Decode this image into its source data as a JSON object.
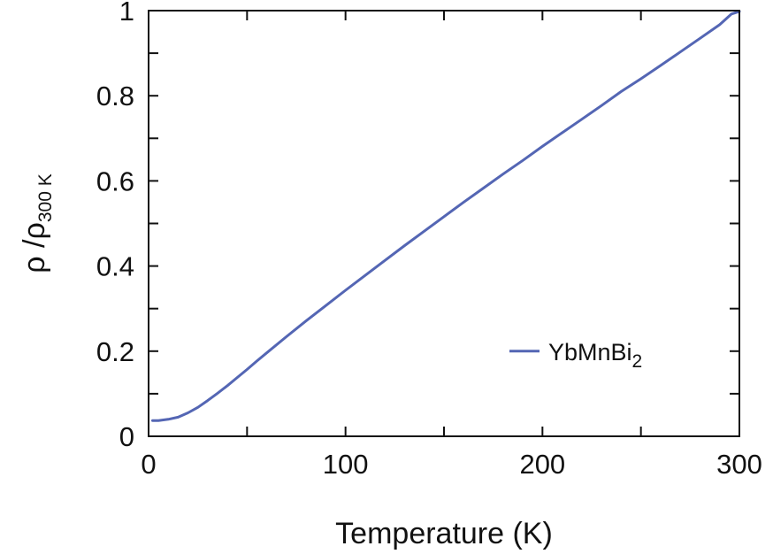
{
  "chart_data": {
    "type": "line",
    "title": "",
    "xlabel": "Temperature (K)",
    "ylabel": {
      "symbol": "ρ /ρ",
      "subscript": "300 K"
    },
    "xlim": [
      0,
      300
    ],
    "ylim": [
      0,
      1.0
    ],
    "xticks": [
      0,
      100,
      200,
      300
    ],
    "xtick_labels": [
      "0",
      "100",
      "200",
      "300"
    ],
    "yticks": [
      0,
      0.2,
      0.4,
      0.6,
      0.8,
      1.0
    ],
    "ytick_labels": [
      "0",
      "0.2",
      "0.4",
      "0.6",
      "0.8",
      "1"
    ],
    "grid": false,
    "legend_position": "lower-right",
    "colors": {
      "series": "#5466b4",
      "axis": "#111111"
    },
    "legend": {
      "base": "YbMnBi",
      "subscript": "2"
    },
    "series": [
      {
        "color": "#5466b4",
        "x": [
          2,
          5,
          10,
          15,
          20,
          25,
          30,
          35,
          40,
          45,
          50,
          55,
          60,
          70,
          80,
          90,
          100,
          110,
          120,
          130,
          140,
          150,
          160,
          170,
          180,
          190,
          200,
          210,
          220,
          230,
          240,
          250,
          260,
          270,
          280,
          290,
          296,
          300
        ],
        "y": [
          0.037,
          0.037,
          0.04,
          0.045,
          0.055,
          0.068,
          0.084,
          0.101,
          0.119,
          0.138,
          0.157,
          0.177,
          0.196,
          0.234,
          0.271,
          0.307,
          0.343,
          0.378,
          0.413,
          0.448,
          0.482,
          0.516,
          0.55,
          0.583,
          0.616,
          0.648,
          0.681,
          0.713,
          0.745,
          0.777,
          0.81,
          0.84,
          0.871,
          0.903,
          0.935,
          0.967,
          0.992,
          0.998
        ]
      }
    ]
  }
}
